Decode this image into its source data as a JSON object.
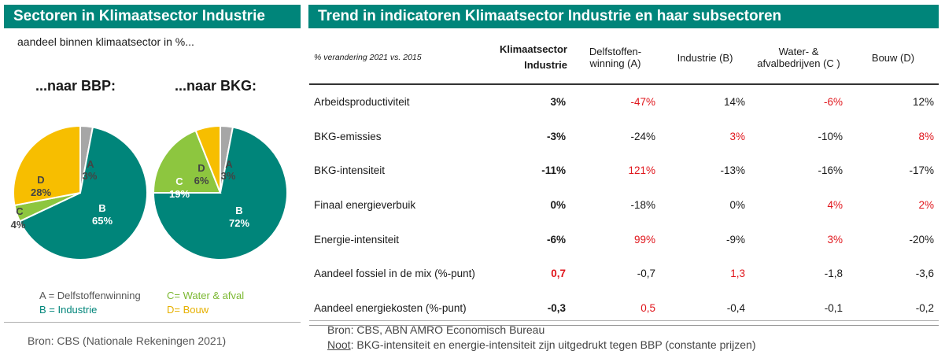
{
  "left": {
    "title": "Sectoren in Klimaatsector Industrie",
    "subtitle": "aandeel binnen klimaatsector in %..."
  },
  "right": {
    "title": "Trend in indicatoren Klimaatsector Industrie en haar subsectoren"
  },
  "colors": {
    "A": "#a6a6a6",
    "B": "#00857a",
    "C": "#8dc63f",
    "D": "#f7be00",
    "header": "#00857a",
    "negative": "#e0161c"
  },
  "chart_data": [
    {
      "type": "pie",
      "title": "...naar BBP:",
      "slices": [
        {
          "key": "A",
          "label": "A",
          "value": 3,
          "pct_label": "3%"
        },
        {
          "key": "B",
          "label": "B",
          "value": 65,
          "pct_label": "65%"
        },
        {
          "key": "C",
          "label": "C",
          "value": 4,
          "pct_label": "4%"
        },
        {
          "key": "D",
          "label": "D",
          "value": 28,
          "pct_label": "28%"
        }
      ]
    },
    {
      "type": "pie",
      "title": "...naar BKG:",
      "slices": [
        {
          "key": "A",
          "label": "A",
          "value": 3,
          "pct_label": "3%"
        },
        {
          "key": "B",
          "label": "B",
          "value": 72,
          "pct_label": "72%"
        },
        {
          "key": "C",
          "label": "C",
          "value": 19,
          "pct_label": "19%"
        },
        {
          "key": "D",
          "label": "D",
          "value": 6,
          "pct_label": "6%"
        }
      ]
    },
    {
      "type": "table",
      "caption": "% verandering 2021 vs. 2015",
      "columns": [
        "Klimaatsector Industrie",
        "Delfstoffen- winning (A)",
        "Industrie (B)",
        "Water- & afvalbedrijven (C )",
        "Bouw (D)"
      ],
      "rows": [
        {
          "label": "Arbeidsproductiviteit",
          "values": [
            "3%",
            "-47%",
            "14%",
            "-6%",
            "12%"
          ],
          "red": [
            false,
            true,
            false,
            true,
            false
          ]
        },
        {
          "label": "BKG-emissies",
          "values": [
            "-3%",
            "-24%",
            "3%",
            "-10%",
            "8%"
          ],
          "red": [
            false,
            false,
            true,
            false,
            true
          ]
        },
        {
          "label": "BKG-intensiteit",
          "values": [
            "-11%",
            "121%",
            "-13%",
            "-16%",
            "-17%"
          ],
          "red": [
            false,
            true,
            false,
            false,
            false
          ]
        },
        {
          "label": "Finaal energieverbuik",
          "values": [
            "0%",
            "-18%",
            "0%",
            "4%",
            "2%"
          ],
          "red": [
            false,
            false,
            false,
            true,
            true
          ]
        },
        {
          "label": "Energie-intensiteit",
          "values": [
            "-6%",
            "99%",
            "-9%",
            "3%",
            "-20%"
          ],
          "red": [
            false,
            true,
            false,
            true,
            false
          ]
        },
        {
          "label": "Aandeel fossiel in de mix (%-punt)",
          "values": [
            "0,7",
            "-0,7",
            "1,3",
            "-1,8",
            "-3,6"
          ],
          "red": [
            true,
            false,
            true,
            false,
            false
          ]
        },
        {
          "label": "Aandeel energiekosten (%-punt)",
          "values": [
            "-0,3",
            "0,5",
            "-0,4",
            "-0,1",
            "-0,2"
          ],
          "red": [
            false,
            true,
            false,
            false,
            false
          ]
        }
      ]
    }
  ],
  "legend": {
    "A": "A = Delfstoffenwinning",
    "B": "B = Industrie",
    "C": "C= Water & afval",
    "D": "D= Bouw"
  },
  "sources": {
    "left": "Bron: CBS (Nationale Rekeningen 2021)",
    "right_source": "Bron: CBS, ABN AMRO Economisch Bureau",
    "right_note_label": "Noot",
    "right_note_text": ": BKG-intensiteit en energie-intensiteit zijn uitgedrukt tegen BBP (constante prijzen)"
  }
}
